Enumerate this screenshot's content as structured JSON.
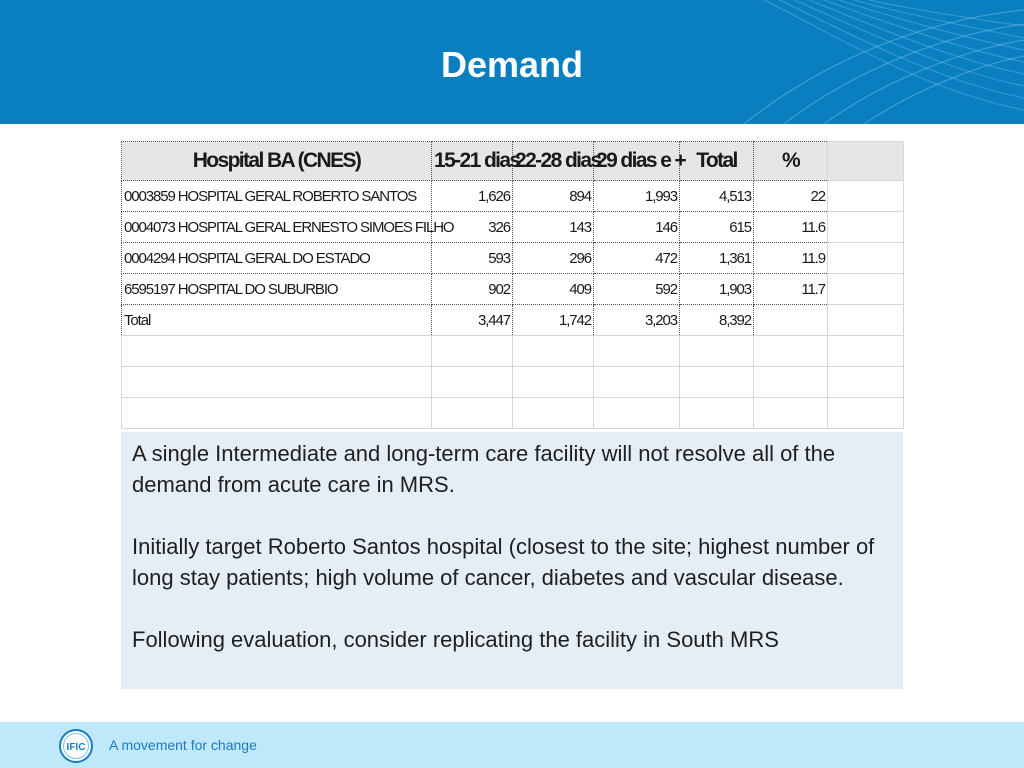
{
  "slide": {
    "title": "Demand"
  },
  "table": {
    "headers": [
      "Hospital BA (CNES)",
      "15-21 dias",
      "22-28 dias",
      "29 dias e +",
      "Total",
      "%"
    ],
    "rows": [
      [
        "0003859 HOSPITAL GERAL ROBERTO SANTOS",
        "1,626",
        "894",
        "1,993",
        "4,513",
        "22"
      ],
      [
        "0004073 HOSPITAL GERAL ERNESTO SIMOES FILHO",
        "326",
        "143",
        "146",
        "615",
        "11.6"
      ],
      [
        "0004294 HOSPITAL GERAL DO ESTADO",
        "593",
        "296",
        "472",
        "1,361",
        "11.9"
      ],
      [
        "6595197 HOSPITAL DO SUBURBIO",
        "902",
        "409",
        "592",
        "1,903",
        "11.7"
      ],
      [
        "Total",
        "3,447",
        "1,742",
        "3,203",
        "8,392",
        ""
      ]
    ]
  },
  "note": {
    "paragraphs": [
      "A single Intermediate and long-term care facility will not resolve all of the demand from acute care in MRS.",
      "Initially target Roberto Santos hospital (closest to the site; highest number of long stay patients; high volume of cancer, diabetes and vascular disease.",
      "Following evaluation, consider replicating the facility in South MRS"
    ]
  },
  "footer": {
    "logo_text": "IFIC",
    "tagline": "A movement for change"
  },
  "colors": {
    "header": "#0a7fc0",
    "footer": "#bfe8fb",
    "note_background": "#e0eaf3"
  }
}
